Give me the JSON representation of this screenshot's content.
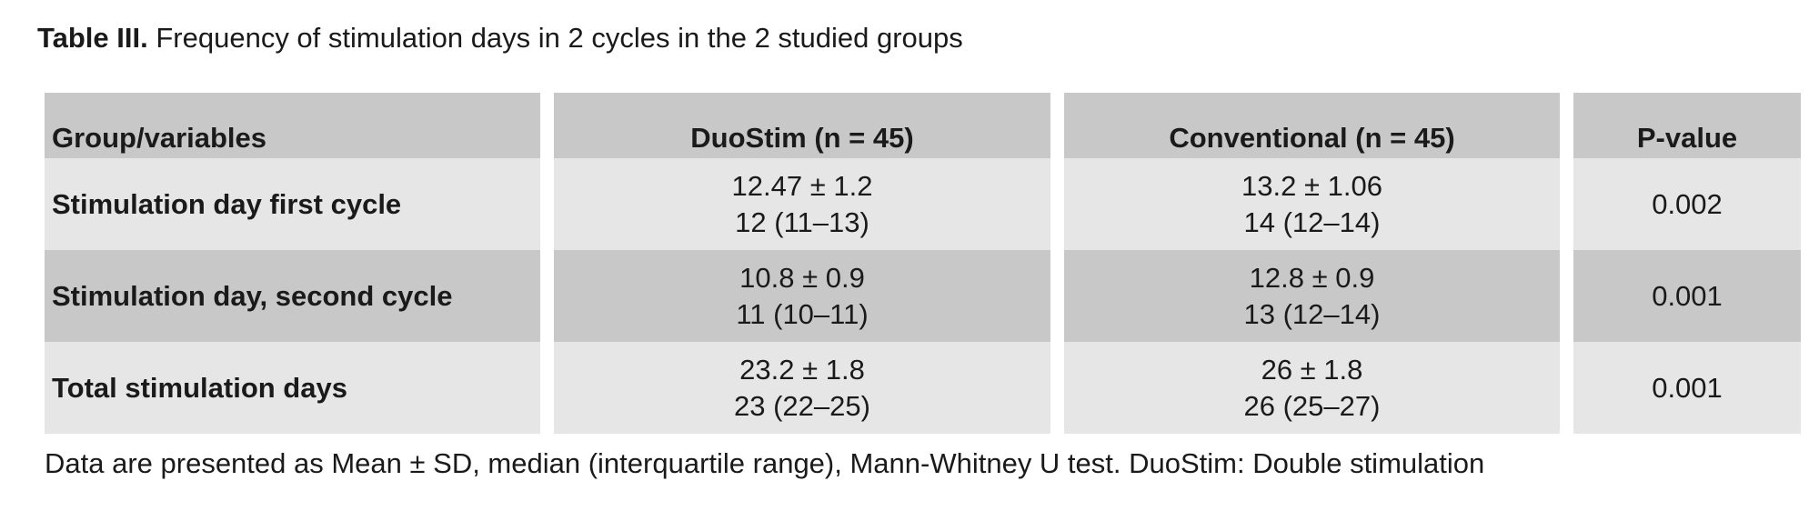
{
  "caption": {
    "label": "Table III.",
    "text": "Frequency of stimulation days in 2 cycles in the 2 studied groups"
  },
  "table": {
    "columns": [
      "Group/variables",
      "DuoStim (n = 45)",
      "Conventional (n = 45)",
      "P-value"
    ],
    "rows": [
      [
        "Stimulation day first cycle",
        [
          "12.47 ± 1.2",
          "12 (11–13)"
        ],
        [
          "13.2 ± 1.06",
          "14 (12–14)"
        ],
        "0.002"
      ],
      [
        "Stimulation day, second cycle",
        [
          "10.8 ± 0.9",
          "11 (10–11)"
        ],
        [
          "12.8 ± 0.9",
          "13 (12–14)"
        ],
        "0.001"
      ],
      [
        "Total stimulation days",
        [
          "23.2 ± 1.8",
          "23 (22–25)"
        ],
        [
          "26 ± 1.8",
          "26 (25–27)"
        ],
        "0.001"
      ]
    ]
  },
  "footnote": "Data are presented as Mean ± SD, median (interquartile range), Mann-Whitney U test. DuoStim: Double stimulation"
}
